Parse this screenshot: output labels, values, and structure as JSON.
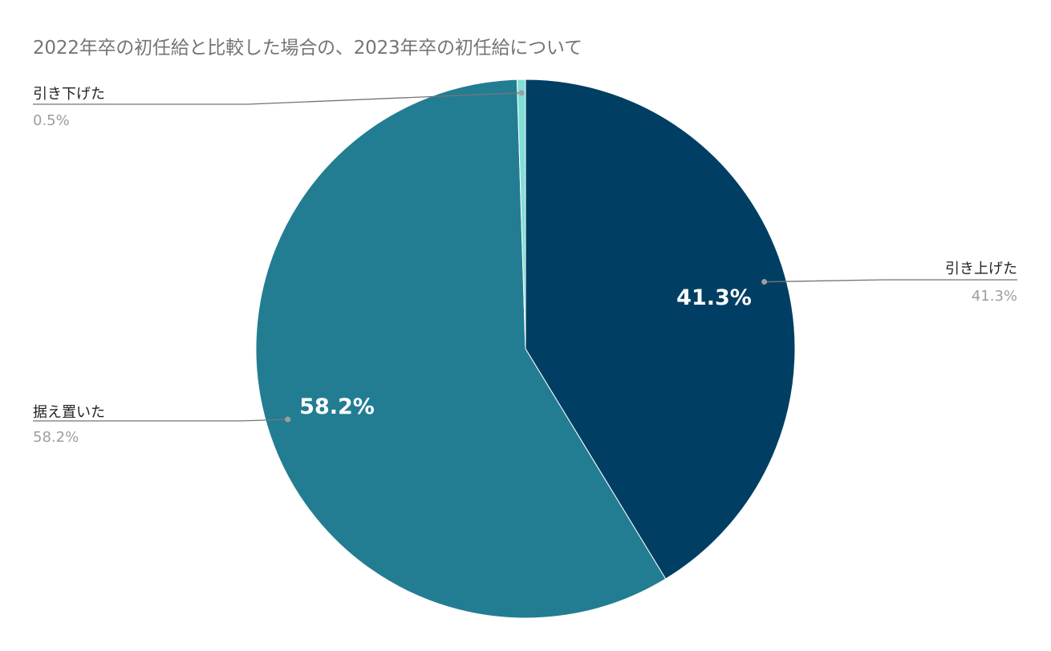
{
  "chart_data": {
    "type": "pie",
    "title": "2022年卒の初任給と比較した場合の、2023年卒の初任給について",
    "slices": [
      {
        "label": "引き上げた",
        "value": 41.3,
        "display": "41.3%",
        "color": "#003f63",
        "inside_label": true
      },
      {
        "label": "据え置いた",
        "value": 58.2,
        "display": "58.2%",
        "color": "#237d92",
        "inside_label": true
      },
      {
        "label": "引き下げた",
        "value": 0.5,
        "display": "0.5%",
        "color": "#7fe0d8",
        "inside_label": false
      }
    ],
    "start_angle": "12 o'clock",
    "direction": "clockwise",
    "legend": "callout-labels"
  }
}
